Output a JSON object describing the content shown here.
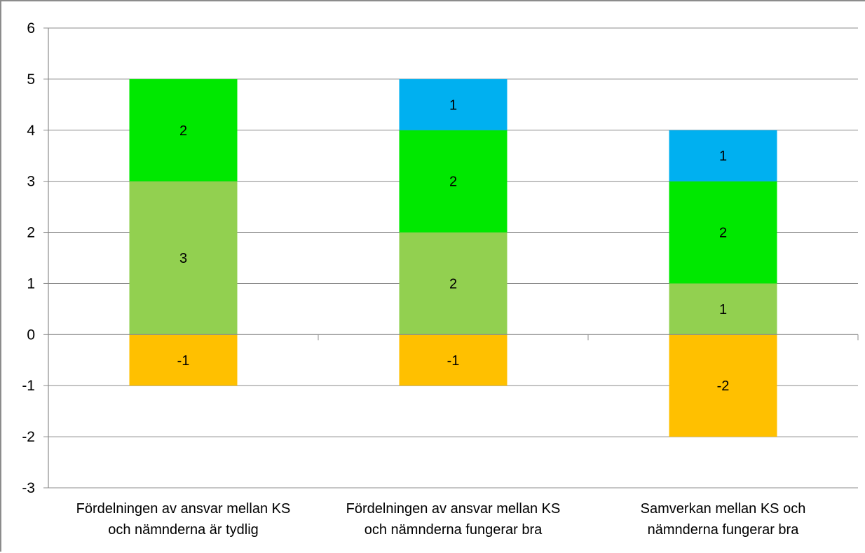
{
  "chart_data": {
    "type": "bar",
    "stacked": true,
    "title": "",
    "xlabel": "",
    "ylabel": "",
    "ylim": [
      -3,
      6
    ],
    "yticks": [
      6,
      5,
      4,
      3,
      2,
      1,
      0,
      -1,
      -2,
      -3
    ],
    "grid": true,
    "legend": "none",
    "categories": [
      [
        "Fördelningen av ansvar mellan KS",
        "och nämnderna är tydlig"
      ],
      [
        "Fördelningen av ansvar mellan KS",
        "och nämnderna fungerar bra"
      ],
      [
        "Samverkan mellan KS och",
        "nämnderna fungerar bra"
      ]
    ],
    "series": [
      {
        "color": "#FFC000",
        "values": [
          -1,
          -1,
          -2
        ]
      },
      {
        "color": "#92D050",
        "values": [
          3,
          2,
          1
        ]
      },
      {
        "color": "#00E800",
        "values": [
          2,
          2,
          2
        ]
      },
      {
        "color": "#00B0F0",
        "values": [
          0,
          1,
          1
        ]
      }
    ]
  }
}
